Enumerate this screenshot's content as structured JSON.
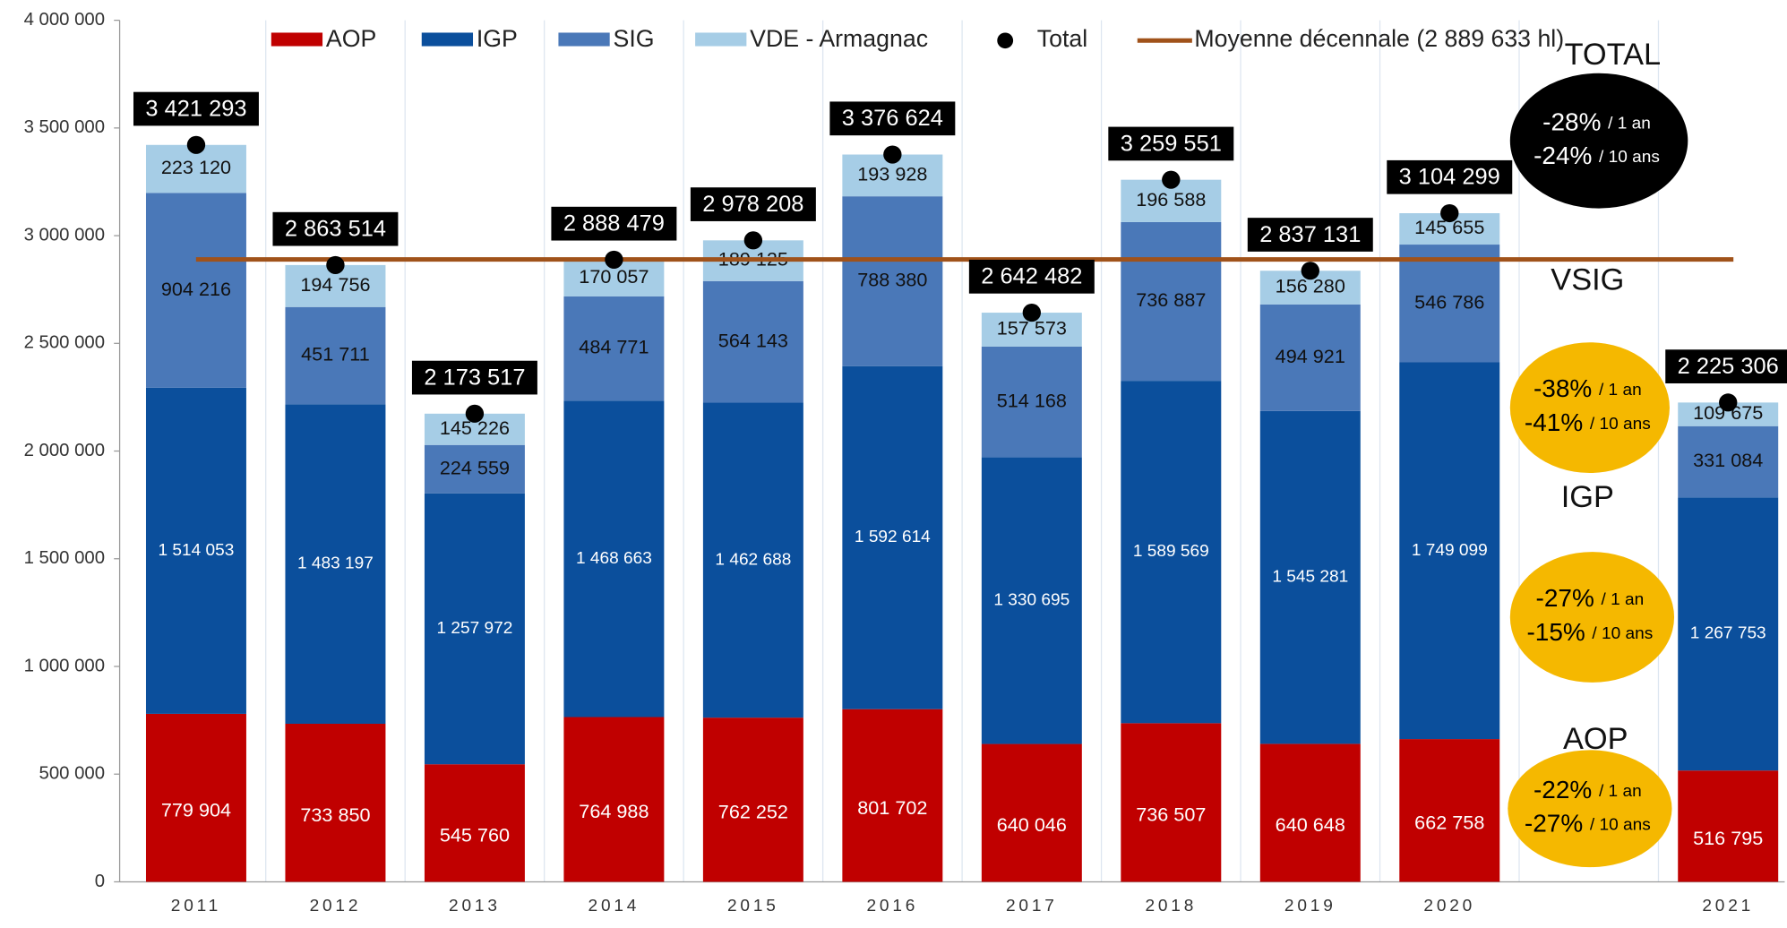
{
  "chart_data": {
    "type": "bar",
    "stacked": true,
    "categories": [
      "2011",
      "2012",
      "2013",
      "2014",
      "2015",
      "2016",
      "2017",
      "2018",
      "2019",
      "2020",
      null,
      "2021"
    ],
    "series": [
      {
        "name": "AOP",
        "color": "#c00000",
        "values": [
          779904,
          733850,
          545760,
          764988,
          762252,
          801702,
          640046,
          736507,
          640648,
          662758,
          null,
          516795
        ],
        "value_labels": [
          "779 904",
          "733 850",
          "545 760",
          "764 988",
          "762 252",
          "801 702",
          "640 046",
          "736 507",
          "640 648",
          "662 758",
          null,
          "516 795"
        ]
      },
      {
        "name": "IGP",
        "color": "#0b4f9c",
        "values": [
          1514053,
          1483197,
          1257972,
          1468663,
          1462688,
          1592614,
          1330695,
          1589569,
          1545281,
          1749099,
          null,
          1267753
        ],
        "value_labels": [
          "1 514 053",
          "1 483 197",
          "1 257 972",
          "1 468 663",
          "1 462 688",
          "1 592 614",
          "1 330 695",
          "1 589 569",
          "1 545 281",
          "1 749 099",
          null,
          "1 267 753"
        ]
      },
      {
        "name": "SIG",
        "color": "#4a78b8",
        "values": [
          904216,
          451711,
          224559,
          484771,
          564143,
          788380,
          514168,
          736887,
          494921,
          546786,
          null,
          331084
        ],
        "value_labels": [
          "904 216",
          "451 711",
          "224 559",
          "484 771",
          "564 143",
          "788 380",
          "514 168",
          "736 887",
          "494 921",
          "546 786",
          null,
          "331 084"
        ]
      },
      {
        "name": "VDE - Armagnac",
        "color": "#a6cde6",
        "values": [
          223120,
          194756,
          145226,
          170057,
          189125,
          193928,
          157573,
          196588,
          156280,
          145655,
          null,
          109675
        ],
        "value_labels": [
          "223 120",
          "194 756",
          "145 226",
          "170 057",
          "189 125",
          "193 928",
          "157 573",
          "196 588",
          "156 280",
          "145 655",
          null,
          "109 675"
        ]
      },
      {
        "name": "Total",
        "type": "scatter",
        "color": "#000000",
        "values": [
          3421293,
          2863514,
          2173517,
          2888479,
          2978208,
          3376624,
          2642482,
          3259551,
          2837131,
          3104299,
          null,
          2225306
        ],
        "value_labels": [
          "3 421 293",
          "2 863 514",
          "2 173 517",
          "2 888 479",
          "2 978 208",
          "3 376 624",
          "2 642 482",
          "3 259 551",
          "2 837 131",
          "3 104 299",
          null,
          "2 225 306"
        ]
      }
    ],
    "average": {
      "name": "Moyenne décennale (2 889 633 hl)",
      "value": 2889633,
      "color": "#a0521a"
    },
    "ylim": [
      0,
      4000000
    ],
    "yticks": [
      0,
      {
        "value": 500000,
        "label": "500 000"
      },
      {
        "value": 1000000,
        "label": "1 000 000"
      },
      {
        "value": 1500000,
        "label": "1 500 000"
      },
      {
        "value": 2000000,
        "label": "2 000 000"
      },
      {
        "value": 2500000,
        "label": "2 500 000"
      },
      {
        "value": 3000000,
        "label": "3 000 000"
      },
      {
        "value": 3500000,
        "label": "3 500 000"
      },
      {
        "value": 4000000,
        "label": "4 000 000"
      }
    ],
    "annotations": [
      {
        "title": "TOTAL",
        "color": "#000000",
        "text_color": "#ffffff",
        "lines": [
          {
            "value": "-28%",
            "period": "/ 1 an"
          },
          {
            "value": "-24%",
            "period": "/ 10 ans"
          }
        ]
      },
      {
        "title": "VSIG",
        "color": "#f5b800",
        "text_color": "#000000",
        "lines": [
          {
            "value": "-38%",
            "period": "/ 1 an"
          },
          {
            "value": "-41%",
            "period": "/ 10 ans"
          }
        ]
      },
      {
        "title": "IGP",
        "color": "#f5b800",
        "text_color": "#000000",
        "lines": [
          {
            "value": "-27%",
            "period": "/ 1 an"
          },
          {
            "value": "-15%",
            "period": "/ 10 ans"
          }
        ]
      },
      {
        "title": "AOP",
        "color": "#f5b800",
        "text_color": "#000000",
        "lines": [
          {
            "value": "-22%",
            "period": "/ 1 an"
          },
          {
            "value": "-27%",
            "period": "/ 10 ans"
          }
        ]
      }
    ]
  }
}
